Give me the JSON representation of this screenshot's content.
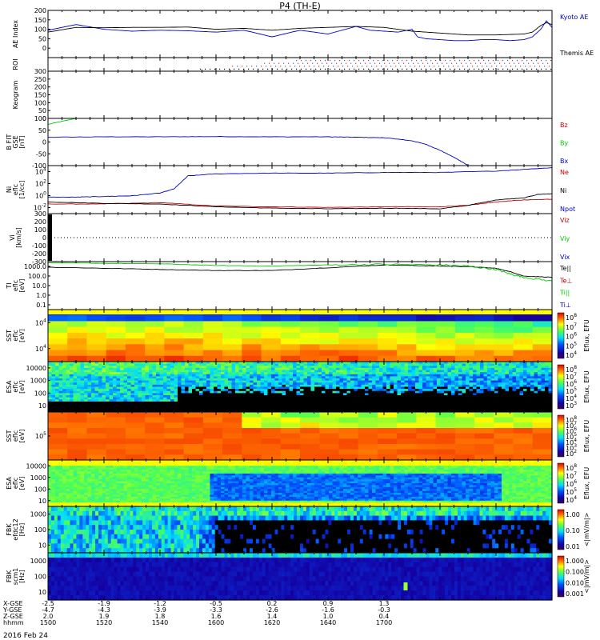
{
  "title": "P4 (TH-E)",
  "date_label": "2016 Feb 24",
  "colors": {
    "black": "#000000",
    "blue": "#0000cc",
    "red": "#cc0000",
    "green": "#00cc00",
    "yellow": "#ffff00"
  },
  "chart_data": [
    {
      "id": "ae",
      "type": "line",
      "ylabel": [
        "AE Index"
      ],
      "yticks": [
        "200",
        "150",
        "100",
        "50",
        "0"
      ],
      "ylim": [
        -50,
        200
      ],
      "legend_placement": "right",
      "series": [
        {
          "name": "Kyoto AE",
          "color": "#0000cc",
          "x": [
            1500,
            1505,
            1510,
            1520,
            1530,
            1540,
            1550,
            1600,
            1610,
            1620,
            1630,
            1640,
            1645,
            1650,
            1655,
            1700,
            1705,
            1710,
            1712,
            1715,
            1720,
            1725,
            1730,
            1735,
            1740,
            1745,
            1750,
            1753,
            1756,
            1758,
            1800
          ],
          "y": [
            95,
            110,
            125,
            100,
            90,
            95,
            92,
            85,
            95,
            60,
            95,
            75,
            95,
            115,
            95,
            90,
            85,
            100,
            60,
            50,
            45,
            40,
            40,
            45,
            45,
            40,
            45,
            60,
            100,
            145,
            110
          ]
        },
        {
          "name": "Themis AE",
          "color": "#000000",
          "x": [
            1500,
            1510,
            1520,
            1530,
            1540,
            1550,
            1600,
            1610,
            1620,
            1630,
            1640,
            1650,
            1700,
            1705,
            1710,
            1715,
            1720,
            1725,
            1730,
            1740,
            1750,
            1753,
            1756,
            1758,
            1800
          ],
          "y": [
            85,
            110,
            108,
            110,
            110,
            112,
            100,
            105,
            95,
            105,
            110,
            115,
            110,
            100,
            90,
            85,
            80,
            75,
            70,
            70,
            75,
            85,
            120,
            135,
            125
          ]
        }
      ]
    },
    {
      "id": "roi",
      "type": "scatter",
      "ylabel": [
        "ROI"
      ],
      "note_rows": 4
    },
    {
      "id": "keogram",
      "type": "line",
      "ylabel": [
        "Keogram"
      ],
      "yticks": [
        "300",
        "250",
        "200",
        "150",
        "100",
        "50",
        "0"
      ],
      "ylim": [
        0,
        300
      ],
      "series": []
    },
    {
      "id": "bfit",
      "type": "line",
      "ylabel": [
        "B FIT",
        "GSE",
        "[nT]"
      ],
      "yticks": [
        "100",
        "50",
        "0",
        "-50",
        "-100"
      ],
      "ylim": [
        -100,
        100
      ],
      "legend_placement": "right",
      "series": [
        {
          "name": "Bz",
          "color": "#cc0000",
          "x": [],
          "y": []
        },
        {
          "name": "By",
          "color": "#00cc00",
          "x": [
            1500,
            1510
          ],
          "y": [
            75,
            100
          ]
        },
        {
          "name": "Bx",
          "color": "#0000cc",
          "x": [
            1500,
            1520,
            1540,
            1600,
            1620,
            1640,
            1650,
            1700,
            1705,
            1710,
            1715,
            1720,
            1725,
            1728,
            1730
          ],
          "y": [
            20,
            22,
            22,
            23,
            22,
            22,
            20,
            18,
            12,
            5,
            -10,
            -35,
            -65,
            -85,
            -100
          ]
        }
      ]
    },
    {
      "id": "density",
      "type": "line",
      "log_y": true,
      "ylabel": [
        "Ni",
        "eflc",
        "[1/cc]"
      ],
      "yticks": [
        "10^4",
        "10^2",
        "10^0",
        "10^-2"
      ],
      "ylim": [
        -2,
        5
      ],
      "legend_placement": "right",
      "series": [
        {
          "name": "Ne",
          "color": "#cc0000",
          "x": [
            1500,
            1520,
            1540,
            1600,
            1620,
            1640,
            1700,
            1720,
            1730,
            1740,
            1750,
            1800
          ],
          "y": [
            -0.6,
            -0.6,
            -0.4,
            -0.9,
            -1.0,
            -1.1,
            -1.0,
            -1.0,
            -0.8,
            -0.3,
            0.0,
            0.1
          ]
        },
        {
          "name": "Ni",
          "color": "#000000",
          "x": [
            1500,
            1520,
            1540,
            1600,
            1620,
            1640,
            1700,
            1720,
            1730,
            1740,
            1750,
            1755,
            1800
          ],
          "y": [
            -0.3,
            -0.5,
            -0.6,
            -1.0,
            -1.2,
            -1.3,
            -1.2,
            -1.3,
            -0.8,
            0.0,
            0.3,
            0.8,
            0.9
          ]
        },
        {
          "name": "Npot",
          "color": "#0000cc",
          "x": [
            1500,
            1510,
            1520,
            1530,
            1540,
            1545,
            1550,
            1600,
            1620,
            1640,
            1700,
            1720,
            1740,
            1800
          ],
          "y": [
            0.4,
            0.4,
            0.5,
            0.6,
            1.0,
            1.6,
            3.5,
            3.8,
            3.9,
            3.9,
            4.0,
            4.0,
            4.2,
            4.7
          ]
        }
      ]
    },
    {
      "id": "velocity",
      "type": "line",
      "ylabel": [
        "Vi",
        "[km/s]"
      ],
      "yticks": [
        "300",
        "200",
        "100",
        "0",
        "-100",
        "-200",
        "-300"
      ],
      "ylim": [
        -300,
        300
      ],
      "legend_placement": "right",
      "series": [
        {
          "name": "Viz",
          "color": "#cc0000",
          "x": [],
          "y": []
        },
        {
          "name": "Viy",
          "color": "#00cc00",
          "x": [],
          "y": []
        },
        {
          "name": "Vix",
          "color": "#0000cc",
          "x": [],
          "y": []
        }
      ]
    },
    {
      "id": "temperature",
      "type": "line",
      "log_y": true,
      "ylabel": [
        "TI",
        "eflc",
        "[eV]"
      ],
      "yticks": [
        "1000.0",
        "100.0",
        "10.0",
        "1.0",
        "0.1"
      ],
      "ylim": [
        -1,
        3.3
      ],
      "legend_placement": "right",
      "series": [
        {
          "name": "Te||",
          "color": "#000000",
          "x": [
            1500,
            1520,
            1540,
            1600,
            1620,
            1640,
            1700,
            1710,
            1720,
            1730,
            1740,
            1745,
            1750,
            1800
          ],
          "y": [
            2.8,
            2.7,
            2.6,
            2.5,
            2.5,
            2.75,
            3.0,
            2.95,
            2.9,
            2.85,
            2.7,
            2.4,
            2.0,
            1.9
          ]
        },
        {
          "name": "Te⊥",
          "color": "#cc0000",
          "x": [],
          "y": []
        },
        {
          "name": "Ti||",
          "color": "#00cc00",
          "x": [
            1500,
            1520,
            1540,
            1600,
            1620,
            1640,
            1700,
            1720,
            1730,
            1740,
            1745,
            1750,
            1800
          ],
          "y": [
            3.2,
            3.15,
            3.1,
            2.95,
            2.9,
            3.0,
            3.05,
            3.0,
            2.9,
            2.6,
            2.2,
            1.9,
            1.55
          ]
        },
        {
          "name": "Ti⊥",
          "color": "#0000cc",
          "x": [],
          "y": []
        }
      ]
    },
    {
      "id": "sst_e",
      "type": "heatmap",
      "ylabel": [
        "SST",
        "eflc",
        "[eV]"
      ],
      "yticks": [
        "10^4",
        "10^4"
      ],
      "colorbar": {
        "label": "Eflux, EFU",
        "ticks": [
          "10^8",
          "10^7",
          "10^6",
          "10^5",
          "10^4"
        ]
      }
    },
    {
      "id": "esa_e",
      "type": "heatmap",
      "ylabel": [
        "ESA",
        "eflc",
        "[eV]"
      ],
      "yticks": [
        "10000",
        "1000",
        "100",
        "10"
      ],
      "colorbar": {
        "label": "Eflux, EFU",
        "ticks": [
          "10^8",
          "10^7",
          "10^6",
          "10^5",
          "10^4",
          "10^3"
        ]
      }
    },
    {
      "id": "sst_i",
      "type": "heatmap",
      "ylabel": [
        "SST",
        "eflc",
        "[eV]"
      ],
      "yticks": [
        "10^5"
      ],
      "colorbar": {
        "label": "Eflux, EFU",
        "ticks": [
          "10^8",
          "10^7",
          "10^6",
          "10^5",
          "10^4",
          "10^3",
          "10^2"
        ]
      }
    },
    {
      "id": "esa_i",
      "type": "heatmap",
      "ylabel": [
        "ESA",
        "eflc",
        "[eV]"
      ],
      "yticks": [
        "10000",
        "1000",
        "100",
        "10"
      ],
      "colorbar": {
        "label": "Eflux, EFU",
        "ticks": [
          "10^8",
          "10^7",
          "10^6",
          "10^5",
          "10^4"
        ]
      }
    },
    {
      "id": "fbk_e",
      "type": "heatmap",
      "ylabel": [
        "FBK",
        "efdc12",
        "[Hz]"
      ],
      "yticks": [
        "1000",
        "100",
        "10"
      ],
      "colorbar": {
        "label": "<|mV/m|>",
        "ticks": [
          "1.00",
          "0.10",
          "0.01"
        ]
      }
    },
    {
      "id": "fbk_b",
      "type": "heatmap",
      "ylabel": [
        "FBK",
        "scm1",
        "[Hz]"
      ],
      "yticks": [
        "1000",
        "100",
        "10"
      ],
      "colorbar": {
        "label": "<|mV/m|>",
        "ticks": [
          "1.000",
          "0.100",
          "0.010",
          "0.001"
        ]
      }
    }
  ],
  "time_axis": {
    "labels": [
      "X-GSE",
      "Y-GSE",
      "Z-GSE",
      "hhmm"
    ],
    "columns": [
      {
        "x": 1500,
        "values": [
          "-2.5",
          "-4.7",
          "2.0",
          "1500"
        ]
      },
      {
        "x": 1520,
        "values": [
          "-1.9",
          "-4.3",
          "1.9",
          "1520"
        ]
      },
      {
        "x": 1540,
        "values": [
          "-1.2",
          "-3.9",
          "1.8",
          "1540"
        ]
      },
      {
        "x": 1600,
        "values": [
          "-0.5",
          "-3.3",
          "1.6",
          "1600"
        ]
      },
      {
        "x": 1620,
        "values": [
          "0.2",
          "-2.6",
          "1.4",
          "1620"
        ]
      },
      {
        "x": 1640,
        "values": [
          "0.9",
          "-1.6",
          "1.0",
          "1640"
        ]
      },
      {
        "x": 1700,
        "values": [
          "1.3",
          "-0.3",
          "0.4",
          "1700"
        ]
      }
    ]
  }
}
